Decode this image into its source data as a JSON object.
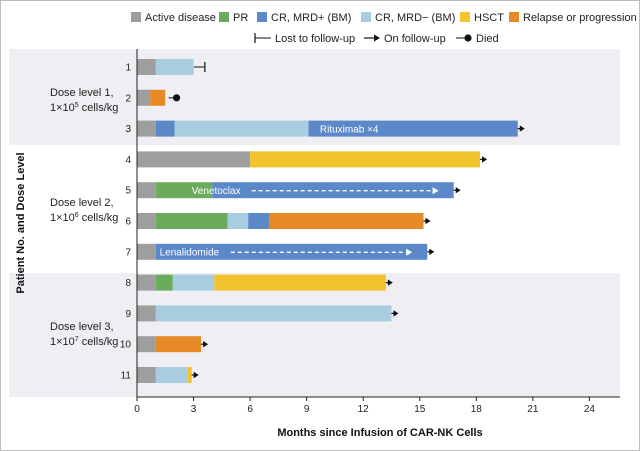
{
  "chart_data": {
    "type": "bar",
    "subtype": "horizontal-stacked-swimmer",
    "xlabel": "Months since Infusion of CAR-NK Cells",
    "ylabel": "Patient No. and Dose Level",
    "xlim": [
      0,
      25
    ],
    "xticks": [
      0,
      3,
      6,
      9,
      12,
      15,
      18,
      21,
      24
    ],
    "legend": {
      "position": "top",
      "states": [
        {
          "key": "active",
          "label": "Active disease",
          "color": "#9e9e9e"
        },
        {
          "key": "pr",
          "label": "PR",
          "color": "#6aac5c"
        },
        {
          "key": "cr_pos",
          "label": "CR, MRD+ (BM)",
          "color": "#5b88c8"
        },
        {
          "key": "cr_neg",
          "label": "CR, MRD− (BM)",
          "color": "#a9cde0"
        },
        {
          "key": "hsct",
          "label": "HSCT",
          "color": "#f2c32c"
        },
        {
          "key": "relapse",
          "label": "Relapse or progression",
          "color": "#e58a26"
        }
      ],
      "markers": [
        {
          "key": "lost",
          "label": "Lost to follow-up"
        },
        {
          "key": "on",
          "label": "On follow-up"
        },
        {
          "key": "died",
          "label": "Died"
        }
      ]
    },
    "groups": [
      {
        "label_line1": "Dose level 1,",
        "label_line2_pre": "1×10",
        "label_sup": "5",
        "label_line2_post": " cells/kg",
        "patients": [
          "1",
          "2",
          "3"
        ]
      },
      {
        "label_line1": "Dose level 2,",
        "label_line2_pre": "1×10",
        "label_sup": "6",
        "label_line2_post": " cells/kg",
        "patients": [
          "4",
          "5",
          "6",
          "7"
        ]
      },
      {
        "label_line1": "Dose level 3,",
        "label_line2_pre": "1×10",
        "label_sup": "7",
        "label_line2_post": " cells/kg",
        "patients": [
          "8",
          "9",
          "10",
          "11"
        ]
      }
    ],
    "patients": [
      {
        "id": "1",
        "segments": [
          {
            "state": "active",
            "start": 0,
            "end": 1
          },
          {
            "state": "cr_neg",
            "start": 1,
            "end": 3
          }
        ],
        "end_marker": "lost",
        "end_time": 3.6
      },
      {
        "id": "2",
        "segments": [
          {
            "state": "active",
            "start": 0,
            "end": 0.7
          },
          {
            "state": "relapse",
            "start": 0.7,
            "end": 1.5
          }
        ],
        "end_marker": "died",
        "end_time": 2.1
      },
      {
        "id": "3",
        "segments": [
          {
            "state": "active",
            "start": 0,
            "end": 1
          },
          {
            "state": "cr_pos",
            "start": 1,
            "end": 2
          },
          {
            "state": "cr_neg",
            "start": 2,
            "end": 9.1
          },
          {
            "state": "cr_pos",
            "start": 9.1,
            "end": 20.2
          }
        ],
        "end_marker": "on",
        "end_time": 20.2,
        "annotation": {
          "text": "Rituximab ×4",
          "at": 9.7
        }
      },
      {
        "id": "4",
        "segments": [
          {
            "state": "active",
            "start": 0,
            "end": 6
          },
          {
            "state": "hsct",
            "start": 6,
            "end": 18.2
          }
        ],
        "end_marker": "on",
        "end_time": 18.2
      },
      {
        "id": "5",
        "segments": [
          {
            "state": "active",
            "start": 0,
            "end": 1
          },
          {
            "state": "pr",
            "start": 1,
            "end": 4
          },
          {
            "state": "cr_pos",
            "start": 4,
            "end": 16.8
          }
        ],
        "end_marker": "on",
        "end_time": 16.8,
        "annotation": {
          "text": "Venetoclax",
          "at": 2.9,
          "arrow_to": 16.0
        }
      },
      {
        "id": "6",
        "segments": [
          {
            "state": "active",
            "start": 0,
            "end": 1
          },
          {
            "state": "pr",
            "start": 1,
            "end": 4.8
          },
          {
            "state": "cr_neg",
            "start": 4.8,
            "end": 5.9
          },
          {
            "state": "cr_pos",
            "start": 5.9,
            "end": 7
          },
          {
            "state": "relapse",
            "start": 7,
            "end": 15.2
          }
        ],
        "end_marker": "on",
        "end_time": 15.2
      },
      {
        "id": "7",
        "segments": [
          {
            "state": "active",
            "start": 0,
            "end": 1
          },
          {
            "state": "cr_pos",
            "start": 1,
            "end": 15.4
          }
        ],
        "end_marker": "on",
        "end_time": 15.4,
        "annotation": {
          "text": "Lenalidomide",
          "at": 1.2,
          "arrow_to": 14.6
        }
      },
      {
        "id": "8",
        "segments": [
          {
            "state": "active",
            "start": 0,
            "end": 1
          },
          {
            "state": "pr",
            "start": 1,
            "end": 1.9
          },
          {
            "state": "cr_neg",
            "start": 1.9,
            "end": 4.1
          },
          {
            "state": "hsct",
            "start": 4.1,
            "end": 13.2
          }
        ],
        "end_marker": "on",
        "end_time": 13.2
      },
      {
        "id": "9",
        "segments": [
          {
            "state": "active",
            "start": 0,
            "end": 1
          },
          {
            "state": "cr_neg",
            "start": 1,
            "end": 13.5
          }
        ],
        "end_marker": "on",
        "end_time": 13.5
      },
      {
        "id": "10",
        "segments": [
          {
            "state": "active",
            "start": 0,
            "end": 1
          },
          {
            "state": "relapse",
            "start": 1,
            "end": 3.4
          }
        ],
        "end_marker": "on",
        "end_time": 3.4
      },
      {
        "id": "11",
        "segments": [
          {
            "state": "active",
            "start": 0,
            "end": 1
          },
          {
            "state": "cr_neg",
            "start": 1,
            "end": 2.7
          },
          {
            "state": "hsct",
            "start": 2.7,
            "end": 2.9
          }
        ],
        "end_marker": "on",
        "end_time": 2.9
      }
    ]
  }
}
